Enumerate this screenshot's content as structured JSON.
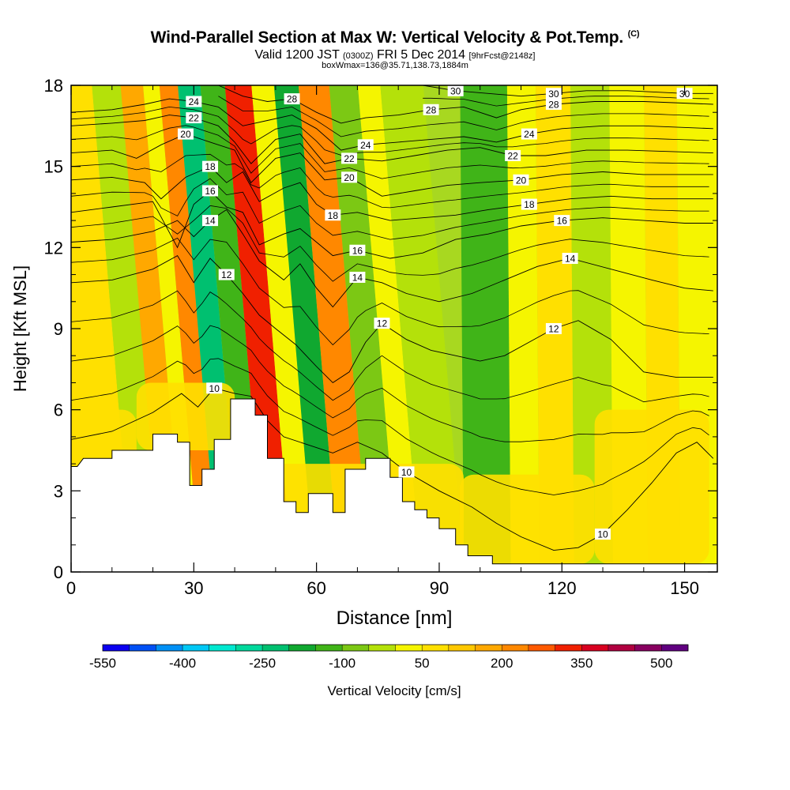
{
  "header": {
    "title": "Wind-Parallel Section at Max W: Vertical Velocity & Pot.Temp.",
    "title_mark": "(C)",
    "valid_main": "Valid 1200 JST",
    "valid_utc": "(0300Z)",
    "valid_date": "FRI 5 Dec 2014",
    "forecast_info": "[9hrFcst@2148z]",
    "box_info": "boxWmax=136@35.71,138.73,1884m"
  },
  "chart_data": {
    "type": "heatmap",
    "xlabel": "Distance [nm]",
    "ylabel": "Height [Kft MSL]",
    "xlim": [
      0,
      158
    ],
    "ylim": [
      0,
      18
    ],
    "x_ticks": [
      0,
      30,
      60,
      90,
      120,
      150
    ],
    "y_ticks": [
      0,
      3,
      6,
      9,
      12,
      15,
      18
    ],
    "grid": false,
    "colorbar": {
      "label": "Vertical Velocity [cm/s]",
      "tick_labels": [
        "-550",
        "-400",
        "-250",
        "-100",
        "50",
        "200",
        "350",
        "500"
      ],
      "colors": [
        "#0b00f0",
        "#0050f5",
        "#0090f5",
        "#00c8f5",
        "#00e8d0",
        "#00d89c",
        "#00c070",
        "#10a830",
        "#40b418",
        "#7cc814",
        "#b4e10a",
        "#f5f500",
        "#ffe000",
        "#ffc800",
        "#ffa800",
        "#ff8800",
        "#ff5a00",
        "#f02000",
        "#d80020",
        "#b00040",
        "#880060",
        "#600080"
      ]
    },
    "terrain_profile_kft": [
      [
        0,
        3.9
      ],
      [
        1.5,
        3.9
      ],
      [
        3,
        4.2
      ],
      [
        10,
        4.2
      ],
      [
        10,
        4.5
      ],
      [
        20,
        4.5
      ],
      [
        20,
        5.1
      ],
      [
        26,
        5.1
      ],
      [
        26,
        4.8
      ],
      [
        29,
        4.8
      ],
      [
        29,
        3.2
      ],
      [
        32,
        3.2
      ],
      [
        32,
        3.8
      ],
      [
        35,
        3.8
      ],
      [
        35,
        4.9
      ],
      [
        39,
        4.9
      ],
      [
        39,
        6.4
      ],
      [
        45,
        6.4
      ],
      [
        45,
        5.8
      ],
      [
        48,
        5.8
      ],
      [
        48,
        4.2
      ],
      [
        52,
        4.2
      ],
      [
        52,
        2.6
      ],
      [
        55,
        2.6
      ],
      [
        55,
        2.2
      ],
      [
        58,
        2.2
      ],
      [
        58,
        2.9
      ],
      [
        64,
        2.9
      ],
      [
        64,
        2.2
      ],
      [
        67,
        2.2
      ],
      [
        67,
        3.8
      ],
      [
        72,
        3.8
      ],
      [
        72,
        4.2
      ],
      [
        78,
        4.2
      ],
      [
        78,
        3.5
      ],
      [
        81,
        3.5
      ],
      [
        81,
        2.6
      ],
      [
        84,
        2.6
      ],
      [
        84,
        2.3
      ],
      [
        87,
        2.3
      ],
      [
        87,
        2.0
      ],
      [
        90,
        2.0
      ],
      [
        90,
        1.6
      ],
      [
        94,
        1.6
      ],
      [
        94,
        1.0
      ],
      [
        97,
        1.0
      ],
      [
        97,
        0.6
      ],
      [
        103,
        0.6
      ],
      [
        103,
        0.3
      ],
      [
        158,
        0.3
      ]
    ],
    "vertical_velocity_bands": [
      {
        "x_center": 11,
        "value": 60
      },
      {
        "x_center": 19,
        "value": -40
      },
      {
        "x_center": 25,
        "value": 170
      },
      {
        "x_center": 30,
        "value": 40
      },
      {
        "x_center": 33,
        "value": 220
      },
      {
        "x_center": 39,
        "value": -220
      },
      {
        "x_center": 44,
        "value": -120
      },
      {
        "x_center": 51,
        "value": 330
      },
      {
        "x_center": 57,
        "value": 30
      },
      {
        "x_center": 62,
        "value": -170
      },
      {
        "x_center": 69,
        "value": 200
      },
      {
        "x_center": 77,
        "value": -90
      },
      {
        "x_center": 83,
        "value": 20
      },
      {
        "x_center": 88,
        "value": -10
      },
      {
        "x_center": 104,
        "value": -130
      },
      {
        "x_center": 111,
        "value": 40
      },
      {
        "x_center": 118,
        "value": 60
      },
      {
        "x_center": 128,
        "value": -30
      },
      {
        "x_center": 137,
        "value": 20
      },
      {
        "x_center": 145,
        "value": 60
      },
      {
        "x_center": 153,
        "value": 30
      }
    ],
    "surface_regions": [
      {
        "x": [
          0,
          16
        ],
        "y": [
          3.9,
          6.0
        ],
        "value": 60
      },
      {
        "x": [
          16,
          40
        ],
        "y": [
          4.5,
          7.0
        ],
        "value": 60
      },
      {
        "x": [
          40,
          96
        ],
        "y": [
          0.3,
          4.0
        ],
        "value": 50
      },
      {
        "x": [
          95,
          128
        ],
        "y": [
          0.3,
          3.6
        ],
        "value": 60
      },
      {
        "x": [
          128,
          156
        ],
        "y": [
          0.3,
          6.0
        ],
        "value": 60
      }
    ],
    "theta_contours": [
      {
        "label": "10",
        "points": [
          [
            0,
            4.9
          ],
          [
            10,
            5.2
          ],
          [
            20,
            5.9
          ],
          [
            27,
            6.6
          ],
          [
            31,
            6.1
          ],
          [
            35,
            6.8
          ],
          [
            40,
            6.6
          ],
          [
            44,
            6.5
          ],
          [
            48,
            5.6
          ],
          [
            52,
            5.0
          ],
          [
            58,
            4.7
          ],
          [
            64,
            4.4
          ],
          [
            70,
            4.8
          ],
          [
            76,
            4.4
          ],
          [
            82,
            3.7
          ],
          [
            90,
            3.0
          ],
          [
            98,
            2.4
          ],
          [
            104,
            1.8
          ],
          [
            110,
            1.3
          ],
          [
            118,
            0.8
          ],
          [
            124,
            0.9
          ],
          [
            130,
            1.4
          ],
          [
            136,
            2.3
          ],
          [
            142,
            3.3
          ],
          [
            148,
            4.4
          ],
          [
            153,
            4.8
          ],
          [
            157,
            4.2
          ]
        ]
      },
      {
        "label": "12",
        "points": [
          [
            0,
            10.7
          ],
          [
            10,
            10.8
          ],
          [
            20,
            11.2
          ],
          [
            26,
            11.7
          ],
          [
            30,
            10.7
          ],
          [
            34,
            11.6
          ],
          [
            38,
            11.0
          ],
          [
            42,
            10.3
          ],
          [
            46,
            9.5
          ],
          [
            50,
            9.0
          ],
          [
            55,
            8.4
          ],
          [
            60,
            7.6
          ],
          [
            64,
            7.0
          ],
          [
            68,
            7.4
          ],
          [
            72,
            8.5
          ],
          [
            76,
            9.2
          ],
          [
            82,
            8.6
          ],
          [
            88,
            8.2
          ],
          [
            94,
            8.0
          ],
          [
            100,
            7.8
          ],
          [
            106,
            8.0
          ],
          [
            112,
            8.5
          ],
          [
            118,
            9.0
          ],
          [
            124,
            9.3
          ],
          [
            132,
            8.6
          ],
          [
            140,
            7.4
          ],
          [
            148,
            7.2
          ],
          [
            157,
            7.2
          ]
        ]
      },
      {
        "label": "14",
        "points": [
          [
            0,
            12.2
          ],
          [
            10,
            12.3
          ],
          [
            20,
            12.6
          ],
          [
            26,
            13.0
          ],
          [
            30,
            12.4
          ],
          [
            34,
            13.0
          ],
          [
            38,
            13.4
          ],
          [
            42,
            12.5
          ],
          [
            46,
            11.5
          ],
          [
            52,
            10.8
          ],
          [
            56,
            11.4
          ],
          [
            60,
            10.5
          ],
          [
            64,
            9.8
          ],
          [
            70,
            10.9
          ],
          [
            76,
            10.7
          ],
          [
            82,
            10.3
          ],
          [
            90,
            10.0
          ],
          [
            98,
            10.3
          ],
          [
            106,
            10.8
          ],
          [
            114,
            11.3
          ],
          [
            122,
            11.6
          ],
          [
            132,
            11.2
          ],
          [
            142,
            10.8
          ],
          [
            150,
            10.5
          ],
          [
            157,
            10.4
          ]
        ]
      },
      {
        "label": "16",
        "points": [
          [
            0,
            13.3
          ],
          [
            10,
            13.5
          ],
          [
            20,
            13.7
          ],
          [
            26,
            12.0
          ],
          [
            30,
            13.6
          ],
          [
            34,
            14.1
          ],
          [
            38,
            13.5
          ],
          [
            42,
            13.3
          ],
          [
            46,
            12.1
          ],
          [
            52,
            12.5
          ],
          [
            56,
            12.7
          ],
          [
            60,
            12.2
          ],
          [
            64,
            11.7
          ],
          [
            70,
            11.9
          ],
          [
            78,
            11.6
          ],
          [
            86,
            11.8
          ],
          [
            94,
            12.3
          ],
          [
            102,
            12.5
          ],
          [
            110,
            12.8
          ],
          [
            120,
            13.0
          ],
          [
            130,
            13.1
          ],
          [
            140,
            13.0
          ],
          [
            150,
            12.9
          ],
          [
            157,
            12.9
          ]
        ]
      },
      {
        "label": "18",
        "points": [
          [
            0,
            14.5
          ],
          [
            10,
            14.6
          ],
          [
            18,
            14.4
          ],
          [
            22,
            13.8
          ],
          [
            28,
            14.6
          ],
          [
            34,
            15.0
          ],
          [
            38,
            14.4
          ],
          [
            42,
            14.8
          ],
          [
            46,
            13.7
          ],
          [
            52,
            14.2
          ],
          [
            56,
            14.4
          ],
          [
            60,
            13.6
          ],
          [
            64,
            13.2
          ],
          [
            70,
            13.3
          ],
          [
            78,
            13.0
          ],
          [
            86,
            13.1
          ],
          [
            94,
            13.2
          ],
          [
            102,
            13.4
          ],
          [
            112,
            13.6
          ],
          [
            122,
            13.8
          ],
          [
            132,
            13.9
          ],
          [
            142,
            13.8
          ],
          [
            157,
            13.8
          ]
        ]
      },
      {
        "label": "20",
        "points": [
          [
            0,
            15.5
          ],
          [
            10,
            15.6
          ],
          [
            16,
            15.3
          ],
          [
            22,
            15.8
          ],
          [
            28,
            16.2
          ],
          [
            34,
            15.9
          ],
          [
            40,
            15.6
          ],
          [
            44,
            14.4
          ],
          [
            50,
            15.3
          ],
          [
            56,
            15.5
          ],
          [
            62,
            14.5
          ],
          [
            68,
            14.6
          ],
          [
            76,
            13.9
          ],
          [
            84,
            14.1
          ],
          [
            92,
            14.3
          ],
          [
            100,
            14.4
          ],
          [
            110,
            14.5
          ],
          [
            120,
            14.7
          ],
          [
            130,
            14.8
          ],
          [
            140,
            14.7
          ],
          [
            157,
            14.7
          ]
        ]
      },
      {
        "label": "22",
        "points": [
          [
            0,
            16.5
          ],
          [
            10,
            16.6
          ],
          [
            18,
            16.7
          ],
          [
            24,
            16.9
          ],
          [
            30,
            16.8
          ],
          [
            36,
            16.5
          ],
          [
            40,
            15.9
          ],
          [
            44,
            15.1
          ],
          [
            50,
            16.0
          ],
          [
            56,
            16.2
          ],
          [
            62,
            15.1
          ],
          [
            68,
            15.3
          ],
          [
            76,
            15.2
          ],
          [
            84,
            15.4
          ],
          [
            92,
            15.6
          ],
          [
            100,
            15.7
          ],
          [
            108,
            15.4
          ],
          [
            116,
            15.4
          ],
          [
            126,
            15.6
          ],
          [
            136,
            15.6
          ],
          [
            157,
            15.5
          ]
        ]
      },
      {
        "label": "24",
        "points": [
          [
            0,
            17.0
          ],
          [
            10,
            17.1
          ],
          [
            18,
            17.3
          ],
          [
            24,
            17.5
          ],
          [
            30,
            17.4
          ],
          [
            36,
            17.2
          ],
          [
            42,
            16.5
          ],
          [
            48,
            16.7
          ],
          [
            54,
            16.9
          ],
          [
            60,
            16.4
          ],
          [
            66,
            15.6
          ],
          [
            72,
            15.8
          ],
          [
            80,
            15.9
          ],
          [
            88,
            16.0
          ],
          [
            96,
            16.1
          ],
          [
            104,
            15.9
          ],
          [
            112,
            16.2
          ],
          [
            120,
            16.4
          ],
          [
            130,
            16.5
          ],
          [
            140,
            16.5
          ],
          [
            157,
            16.4
          ]
        ]
      },
      {
        "label": "28",
        "points": [
          [
            36,
            18.0
          ],
          [
            42,
            17.6
          ],
          [
            48,
            17.4
          ],
          [
            54,
            17.5
          ],
          [
            60,
            17.0
          ],
          [
            66,
            16.6
          ],
          [
            72,
            16.8
          ],
          [
            80,
            16.9
          ],
          [
            88,
            17.1
          ],
          [
            96,
            17.2
          ],
          [
            104,
            16.8
          ],
          [
            110,
            17.1
          ],
          [
            118,
            17.3
          ],
          [
            128,
            17.4
          ],
          [
            140,
            17.4
          ],
          [
            157,
            17.3
          ]
        ]
      },
      {
        "label": "30",
        "points": [
          [
            86,
            18.0
          ],
          [
            94,
            17.8
          ],
          [
            102,
            17.7
          ],
          [
            110,
            17.6
          ],
          [
            118,
            17.7
          ],
          [
            126,
            17.8
          ],
          [
            136,
            17.8
          ],
          [
            150,
            17.7
          ],
          [
            157,
            17.7
          ]
        ]
      }
    ]
  }
}
